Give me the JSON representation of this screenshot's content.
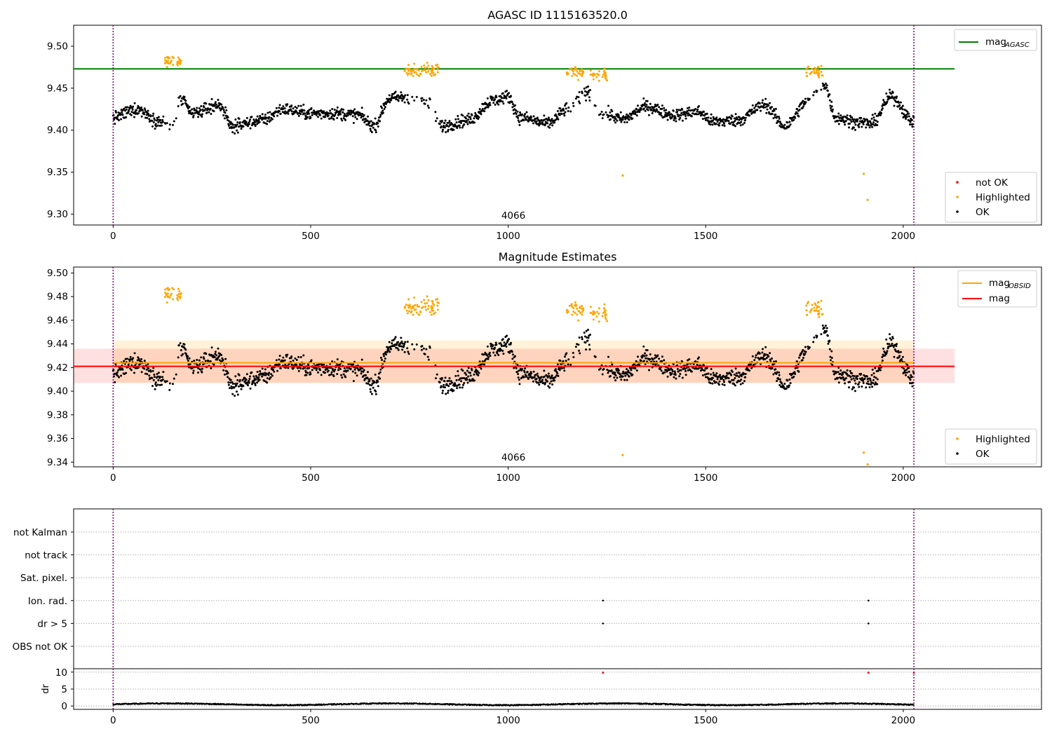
{
  "chart_data": [
    {
      "type": "scatter",
      "title": "AGASC ID 1115163520.0",
      "xlim": [
        -100,
        2350
      ],
      "ylim": [
        9.287,
        9.525
      ],
      "xticks": [
        "0",
        "500",
        "1000",
        "1500",
        "2000"
      ],
      "yticks": [
        "9.30",
        "9.35",
        "9.40",
        "9.45",
        "9.50"
      ],
      "annotation": "4066",
      "obs_boundaries": [
        0,
        2027
      ],
      "legend_lines": [
        {
          "text": "mag",
          "sub": "AGASC",
          "color": "#008000"
        }
      ],
      "legend_markers": [
        {
          "text": "not OK",
          "color": "#ff0000"
        },
        {
          "text": "Highlighted",
          "color": "#ffa500"
        },
        {
          "text": "OK",
          "color": "#000000"
        }
      ],
      "hline": {
        "y": 9.473,
        "x": [
          -100,
          2130
        ],
        "color": "#008000"
      },
      "highlighted_points": [
        [
          1290,
          9.346
        ],
        [
          1900,
          9.348
        ],
        [
          1910,
          9.317
        ]
      ]
    },
    {
      "type": "scatter",
      "title": "Magnitude Estimates",
      "xlim": [
        -100,
        2350
      ],
      "ylim": [
        9.336,
        9.505
      ],
      "xticks": [
        "0",
        "500",
        "1000",
        "1500",
        "2000"
      ],
      "yticks": [
        "9.34",
        "9.36",
        "9.38",
        "9.40",
        "9.42",
        "9.44",
        "9.46",
        "9.48",
        "9.50"
      ],
      "annotation": "4066",
      "obs_boundaries": [
        0,
        2027
      ],
      "legend_lines": [
        {
          "text": "mag",
          "sub": "OBSID",
          "color": "#ffa500"
        },
        {
          "text": "mag",
          "sub": "",
          "color": "#ff0000"
        }
      ],
      "legend_markers": [
        {
          "text": "Highlighted",
          "color": "#ffa500"
        },
        {
          "text": "OK",
          "color": "#000000"
        }
      ],
      "mag_obsid": {
        "value": 9.424,
        "band": [
          9.407,
          9.443
        ],
        "x": [
          0,
          2027
        ]
      },
      "mag": {
        "value": 9.421,
        "band": [
          9.407,
          9.436
        ],
        "x": [
          -100,
          2130
        ]
      },
      "highlighted_points": [
        [
          1290,
          9.346
        ],
        [
          1900,
          9.348
        ],
        [
          1910,
          9.338
        ]
      ]
    },
    {
      "type": "scatter",
      "xlim": [
        -100,
        2350
      ],
      "xticks": [
        "0",
        "500",
        "1000",
        "1500",
        "2000"
      ],
      "flag_rows": [
        "not Kalman",
        "not track",
        "Sat. pixel.",
        "Ion. rad.",
        "dr > 5",
        "OBS not OK"
      ],
      "flag_points": [
        {
          "row": "Ion. rad.",
          "x": [
            1240,
            1912
          ]
        },
        {
          "row": "dr > 5",
          "x": [
            1240,
            1912
          ]
        }
      ],
      "dr_ylabel": "dr",
      "dr_ylim": [
        -1,
        11
      ],
      "dr_yticks": [
        "0",
        "5",
        "10"
      ],
      "dr_clipped_points": [
        1240,
        1912,
        2027
      ],
      "obs_boundaries": [
        0,
        2027
      ]
    }
  ]
}
